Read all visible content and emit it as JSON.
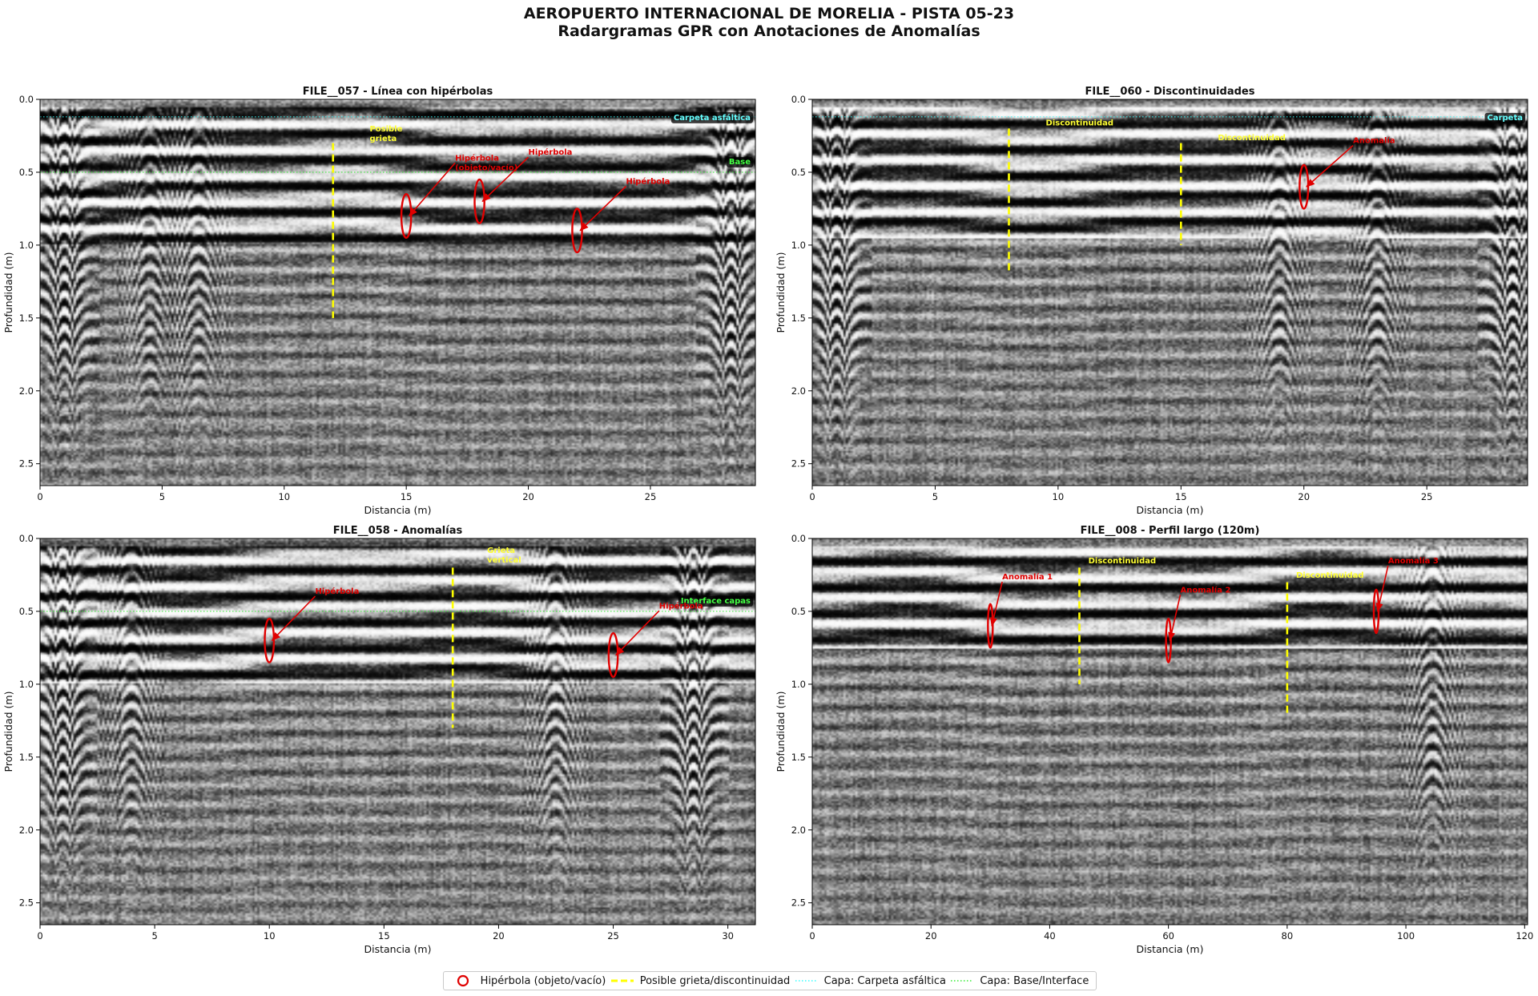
{
  "figure": {
    "title_line1": "AEROPUERTO INTERNACIONAL DE MORELIA - PISTA 05-23",
    "title_line2": "Radargramas GPR con Anotaciones de Anomalías"
  },
  "colors": {
    "hyperbola": "#e00000",
    "crack": "#ffff00",
    "asphalt_layer": "#33ffff",
    "base_layer": "#33ee33",
    "crack_label": "#ffff33",
    "asphalt_label": "#66ffff",
    "base_label": "#44ff44"
  },
  "legend": [
    {
      "type": "hyperbola",
      "label": "Hipérbola (objeto/vacío)"
    },
    {
      "type": "crack",
      "label": "Posible grieta/discontinuidad"
    },
    {
      "type": "asphalt",
      "label": "Capa: Carpeta asfáltica"
    },
    {
      "type": "base",
      "label": "Capa: Base/Interface"
    }
  ],
  "chart_data": [
    {
      "type": "heatmap",
      "title": "FILE__057 - Línea con hipérbolas",
      "xlabel": "Distancia (m)",
      "ylabel": "Profundidad (m)",
      "xlim": [
        0,
        29.3
      ],
      "ylim": [
        2.65,
        0.0
      ],
      "xticks": [
        0,
        5,
        10,
        15,
        20,
        25
      ],
      "yticks": [
        0.0,
        0.5,
        1.0,
        1.5,
        2.0,
        2.5
      ],
      "colormap": "gray",
      "asphalt_depth": 0.12,
      "asphalt_label": "Carpeta asfáltica",
      "base_depth": 0.5,
      "base_label": "Base",
      "hyperbolas": [
        {
          "x": 15,
          "depth": 0.8,
          "label": "Hipérbola\n(objeto/vacío)",
          "label_x": 17.0,
          "label_y": 0.42
        },
        {
          "x": 18,
          "depth": 0.7,
          "label": "Hipérbola",
          "label_x": 20.0,
          "label_y": 0.38
        },
        {
          "x": 22,
          "depth": 0.9,
          "label": "Hipérbola",
          "label_x": 24.0,
          "label_y": 0.58
        }
      ],
      "cracks": [
        {
          "x": 12,
          "depth_top": 0.3,
          "depth_bottom": 1.5,
          "label": "Posible\ngrieta",
          "label_x": 13.5,
          "label_y": 0.22
        }
      ],
      "hyperbola_size": [
        0.4,
        0.3
      ],
      "synthetic": {
        "strong_bottom": 1.0,
        "edge_hyperbolas": [
          1.0,
          28.3
        ],
        "mid_hyperbolas": [
          4.5,
          6.5
        ],
        "seed": 57
      }
    },
    {
      "type": "heatmap",
      "title": "FILE__060 - Discontinuidades",
      "xlabel": "Distancia (m)",
      "ylabel": "Profundidad (m)",
      "xlim": [
        0,
        29.1
      ],
      "ylim": [
        2.65,
        0.0
      ],
      "xticks": [
        0,
        5,
        10,
        15,
        20,
        25
      ],
      "yticks": [
        0.0,
        0.5,
        1.0,
        1.5,
        2.0,
        2.5
      ],
      "colormap": "gray",
      "asphalt_depth": 0.12,
      "asphalt_label": "Carpeta",
      "hyperbolas": [
        {
          "x": 20,
          "depth": 0.6,
          "label": "Anomalía",
          "label_x": 22.0,
          "label_y": 0.3
        }
      ],
      "cracks": [
        {
          "x": 8,
          "depth_top": 0.2,
          "depth_bottom": 1.2,
          "label": "Discontinuidad",
          "label_x": 9.5,
          "label_y": 0.18
        },
        {
          "x": 15,
          "depth_top": 0.3,
          "depth_bottom": 1.0,
          "label": "Discontinuidad",
          "label_x": 16.5,
          "label_y": 0.28
        }
      ],
      "hyperbola_size": [
        0.35,
        0.3
      ],
      "synthetic": {
        "strong_bottom": 0.95,
        "edge_hyperbolas": [
          1.0,
          28.5
        ],
        "mid_hyperbolas": [
          19.0,
          23.0
        ],
        "seed": 60
      }
    },
    {
      "type": "heatmap",
      "title": "FILE__058 - Anomalías",
      "xlabel": "Distancia (m)",
      "ylabel": "Profundidad (m)",
      "xlim": [
        0,
        31.2
      ],
      "ylim": [
        2.65,
        0.0
      ],
      "xticks": [
        0,
        5,
        10,
        15,
        20,
        25,
        30
      ],
      "yticks": [
        0.0,
        0.5,
        1.0,
        1.5,
        2.0,
        2.5
      ],
      "colormap": "gray",
      "base_depth": 0.5,
      "base_label": "Interface capas",
      "hyperbolas": [
        {
          "x": 10,
          "depth": 0.7,
          "label": "Hipérbola",
          "label_x": 12.0,
          "label_y": 0.38
        },
        {
          "x": 25,
          "depth": 0.8,
          "label": "Hipérbola",
          "label_x": 27.0,
          "label_y": 0.48
        }
      ],
      "cracks": [
        {
          "x": 18,
          "depth_top": 0.2,
          "depth_bottom": 1.3,
          "label": "Grieta\nvertical",
          "label_x": 19.5,
          "label_y": 0.1
        }
      ],
      "hyperbola_size": [
        0.4,
        0.3
      ],
      "synthetic": {
        "strong_bottom": 1.0,
        "edge_hyperbolas": [
          1.0,
          28.5
        ],
        "mid_hyperbolas": [
          4.0,
          22.5
        ],
        "seed": 58
      }
    },
    {
      "type": "heatmap",
      "title": "FILE__008 - Perfil largo (120m)",
      "xlabel": "Distancia (m)",
      "ylabel": "Profundidad (m)",
      "xlim": [
        0,
        120.5
      ],
      "ylim": [
        2.65,
        0.0
      ],
      "xticks": [
        0,
        20,
        40,
        60,
        80,
        100,
        120
      ],
      "yticks": [
        0.0,
        0.5,
        1.0,
        1.5,
        2.0,
        2.5
      ],
      "colormap": "gray",
      "hyperbolas": [
        {
          "x": 30,
          "depth": 0.6,
          "label": "Anomalía 1",
          "label_x": 32.0,
          "label_y": 0.28
        },
        {
          "x": 60,
          "depth": 0.7,
          "label": "Anomalía 2",
          "label_x": 62.0,
          "label_y": 0.37
        },
        {
          "x": 95,
          "depth": 0.5,
          "label": "Anomalía 3",
          "label_x": 97.0,
          "label_y": 0.17
        }
      ],
      "cracks": [
        {
          "x": 45,
          "depth_top": 0.2,
          "depth_bottom": 1.0,
          "label": "Discontinuidad",
          "label_x": 46.5,
          "label_y": 0.17
        },
        {
          "x": 80,
          "depth_top": 0.3,
          "depth_bottom": 1.2,
          "label": "Discontinuidad",
          "label_x": 81.5,
          "label_y": 0.27
        }
      ],
      "hyperbola_size": [
        0.5,
        0.3
      ],
      "synthetic": {
        "strong_bottom": 0.75,
        "edge_hyperbolas": [],
        "mid_hyperbolas": [
          104.5
        ],
        "seed": 8
      }
    }
  ]
}
